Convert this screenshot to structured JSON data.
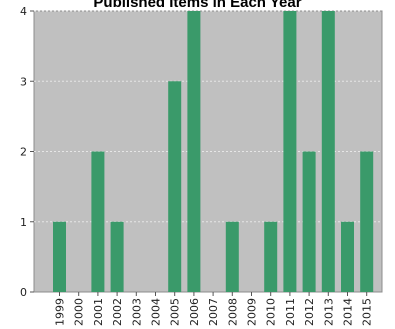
{
  "chart_data": {
    "type": "bar",
    "title": "Published Items in Each Year",
    "xlabel": "",
    "ylabel": "",
    "categories": [
      "1999",
      "2000",
      "2001",
      "2002",
      "2003",
      "2004",
      "2005",
      "2006",
      "2007",
      "2008",
      "2009",
      "2010",
      "2011",
      "2012",
      "2013",
      "2014",
      "2015"
    ],
    "values": [
      1,
      0,
      2,
      1,
      0,
      0,
      3,
      4,
      0,
      1,
      0,
      1,
      4,
      2,
      4,
      1,
      2
    ],
    "ylim": [
      0,
      4
    ],
    "yticks": [
      "0",
      "1",
      "2",
      "3",
      "4"
    ],
    "grid": true,
    "colors": {
      "bar": "#3a9a6a",
      "plot_bg": "#c0c0c0",
      "grid": "#e6e6e6"
    }
  }
}
